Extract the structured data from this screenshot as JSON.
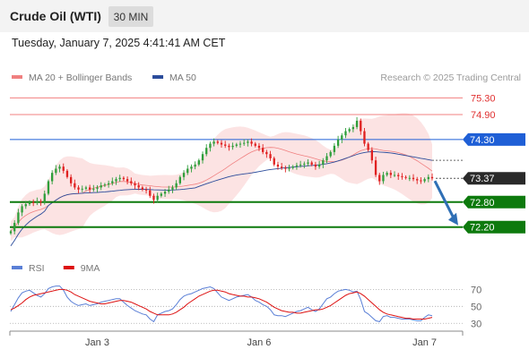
{
  "header": {
    "title": "Crude Oil (WTI)",
    "timeframe": "30 MIN",
    "timestamp": "Tuesday, January 7, 2025 4:41:41 AM CET"
  },
  "colors": {
    "bollinger": "#f08080",
    "ma50": "#2b4c9b",
    "bullish": "#2e9e3a",
    "bearish": "#e02020",
    "resistance": "#f28080",
    "pivot": "#1f5fd6",
    "support": "#0d7a0d",
    "current_price": "#2a2a2a",
    "arrow": "#2f6fb5",
    "rsi": "#5a7fd6",
    "rsi_ma": "#d11"
  },
  "chart_data": [
    {
      "type": "candlestick",
      "title": "",
      "legend": [
        {
          "name": "MA 20 + Bollinger Bands",
          "color": "#f08080"
        },
        {
          "name": "MA 50",
          "color": "#2b4c9b"
        }
      ],
      "legend_position": "top-left",
      "copyright": "Research © 2025 Trading Central",
      "x_ticks": [
        {
          "label": "Jan 3",
          "index": 23
        },
        {
          "label": "Jan 6",
          "index": 66
        },
        {
          "label": "Jan 7",
          "index": 110
        }
      ],
      "ylim": [
        71.85,
        75.5
      ],
      "price_levels": [
        {
          "label": "75.30",
          "value": 75.3,
          "kind": "resistance"
        },
        {
          "label": "74.90",
          "value": 74.9,
          "kind": "resistance"
        },
        {
          "label": "74.30",
          "value": 74.3,
          "kind": "pivot"
        },
        {
          "label": "73.37",
          "value": 73.37,
          "kind": "current"
        },
        {
          "label": "72.80",
          "value": 72.8,
          "kind": "support"
        },
        {
          "label": "72.20",
          "value": 72.2,
          "kind": "support"
        }
      ],
      "close": [
        72.1,
        72.3,
        72.55,
        72.7,
        72.75,
        72.8,
        72.78,
        72.82,
        72.8,
        73.0,
        73.3,
        73.5,
        73.6,
        73.65,
        73.55,
        73.4,
        73.25,
        73.15,
        73.1,
        73.12,
        73.15,
        73.1,
        73.12,
        73.15,
        73.2,
        73.22,
        73.25,
        73.3,
        73.35,
        73.38,
        73.35,
        73.3,
        73.25,
        73.2,
        73.15,
        73.1,
        73.08,
        72.95,
        72.85,
        72.95,
        73.0,
        73.05,
        73.1,
        73.15,
        73.25,
        73.4,
        73.5,
        73.6,
        73.65,
        73.7,
        73.8,
        73.95,
        74.1,
        74.2,
        74.25,
        74.22,
        74.18,
        74.15,
        74.12,
        74.15,
        74.18,
        74.2,
        74.22,
        74.25,
        74.2,
        74.15,
        74.1,
        74.0,
        73.95,
        73.85,
        73.7,
        73.65,
        73.62,
        73.6,
        73.62,
        73.65,
        73.68,
        73.7,
        73.72,
        73.75,
        73.7,
        73.65,
        73.7,
        73.8,
        73.9,
        74.0,
        74.15,
        74.3,
        74.4,
        74.5,
        74.55,
        74.6,
        74.75,
        74.5,
        74.2,
        74.05,
        73.8,
        73.45,
        73.3,
        73.45,
        73.5,
        73.45,
        73.45,
        73.42,
        73.4,
        73.38,
        73.38,
        73.35,
        73.32,
        73.3,
        73.35,
        73.4,
        73.37
      ],
      "rsi": {
        "legend": [
          {
            "name": "RSI",
            "color": "#5a7fd6"
          },
          {
            "name": "9MA",
            "color": "#d11"
          }
        ],
        "levels": [
          70,
          50,
          30
        ],
        "ylim": [
          25,
          82
        ],
        "values": [
          44,
          52,
          60,
          66,
          68,
          69,
          66,
          63,
          61,
          65,
          71,
          73,
          74,
          74,
          69,
          61,
          56,
          53,
          51,
          52,
          53,
          51,
          52,
          53,
          55,
          56,
          57,
          58,
          59,
          59,
          55,
          51,
          48,
          45,
          43,
          41,
          40,
          35,
          32,
          40,
          42,
          44,
          45,
          47,
          52,
          58,
          62,
          64,
          65,
          67,
          69,
          71,
          72,
          73,
          71,
          66,
          61,
          59,
          57,
          59,
          61,
          62,
          63,
          64,
          61,
          57,
          55,
          52,
          50,
          46,
          40,
          39,
          39,
          38,
          40,
          42,
          44,
          45,
          47,
          49,
          46,
          44,
          47,
          53,
          59,
          61,
          65,
          68,
          69,
          70,
          69,
          67,
          68,
          58,
          44,
          41,
          37,
          33,
          32,
          38,
          39,
          37,
          37,
          36,
          35,
          35,
          35,
          34,
          33,
          33,
          37,
          40,
          39
        ],
        "ma_values": [
          46,
          48,
          51,
          54,
          58,
          61,
          63,
          64,
          65,
          66,
          67,
          68,
          69,
          70,
          70,
          69,
          67,
          64,
          62,
          60,
          58,
          56,
          55,
          54,
          53,
          53,
          54,
          55,
          56,
          57,
          57,
          56,
          55,
          53,
          51,
          49,
          47,
          44,
          42,
          40,
          40,
          40,
          40,
          41,
          43,
          46,
          49,
          53,
          56,
          59,
          62,
          64,
          66,
          68,
          69,
          69,
          68,
          67,
          65,
          64,
          63,
          62,
          62,
          61,
          61,
          60,
          59,
          57,
          55,
          52,
          49,
          47,
          45,
          44,
          43,
          43,
          42,
          42,
          43,
          44,
          45,
          46,
          46,
          47,
          49,
          51,
          54,
          57,
          60,
          63,
          65,
          66,
          67,
          65,
          62,
          58,
          54,
          50,
          46,
          43,
          41,
          40,
          39,
          38,
          37,
          36,
          36,
          35,
          35,
          35,
          35,
          36,
          37
        ]
      }
    }
  ]
}
